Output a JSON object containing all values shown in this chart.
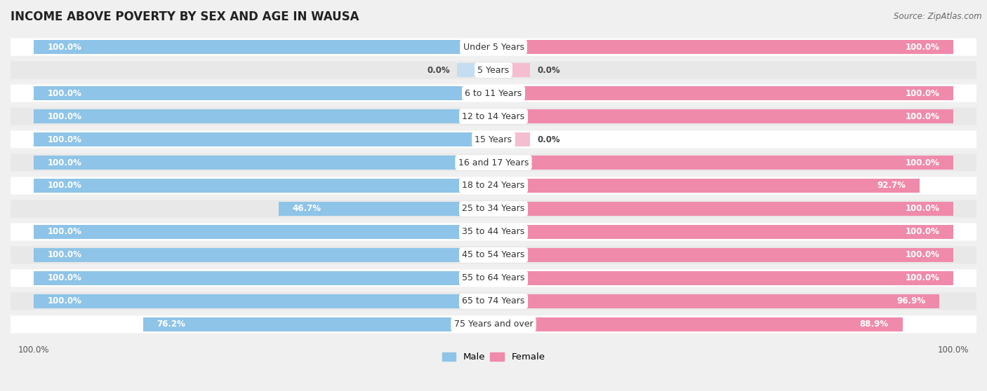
{
  "title": "INCOME ABOVE POVERTY BY SEX AND AGE IN WAUSA",
  "source": "Source: ZipAtlas.com",
  "categories": [
    "Under 5 Years",
    "5 Years",
    "6 to 11 Years",
    "12 to 14 Years",
    "15 Years",
    "16 and 17 Years",
    "18 to 24 Years",
    "25 to 34 Years",
    "35 to 44 Years",
    "45 to 54 Years",
    "55 to 64 Years",
    "65 to 74 Years",
    "75 Years and over"
  ],
  "male": [
    100.0,
    0.0,
    100.0,
    100.0,
    100.0,
    100.0,
    100.0,
    46.7,
    100.0,
    100.0,
    100.0,
    100.0,
    76.2
  ],
  "female": [
    100.0,
    0.0,
    100.0,
    100.0,
    0.0,
    100.0,
    92.7,
    100.0,
    100.0,
    100.0,
    100.0,
    96.9,
    88.9
  ],
  "male_color": "#8ec4e8",
  "female_color": "#f08aaa",
  "male_color_light": "#c5ddf0",
  "female_color_light": "#f5bdd0",
  "male_label": "Male",
  "female_label": "Female",
  "bg_color": "#f0f0f0",
  "row_color_odd": "#ffffff",
  "row_color_even": "#e8e8e8",
  "title_fontsize": 12,
  "label_fontsize": 9,
  "value_fontsize": 8.5,
  "axis_tick_fontsize": 8.5,
  "min_bar_pct": 8.0
}
